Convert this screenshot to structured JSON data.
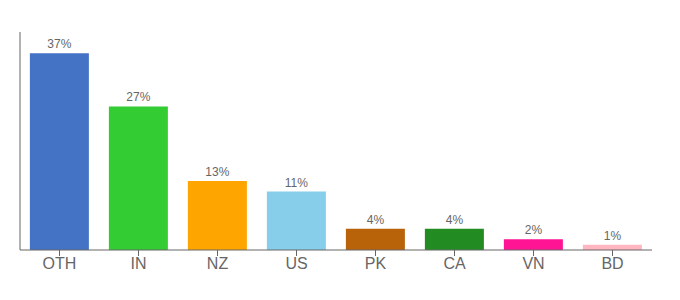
{
  "chart_data": {
    "type": "bar",
    "categories": [
      "OTH",
      "IN",
      "NZ",
      "US",
      "PK",
      "CA",
      "VN",
      "BD"
    ],
    "values": [
      37,
      27,
      13,
      11,
      4,
      4,
      2,
      1
    ],
    "value_labels": [
      "37%",
      "27%",
      "13%",
      "11%",
      "4%",
      "4%",
      "2%",
      "1%"
    ],
    "colors": [
      "#4472C4",
      "#33CC33",
      "#FFA500",
      "#87CEEB",
      "#B8620A",
      "#228B22",
      "#FF1493",
      "#FFB6C1"
    ],
    "ylim": [
      0,
      41
    ],
    "data_labels": true,
    "tick_labels": "x"
  }
}
